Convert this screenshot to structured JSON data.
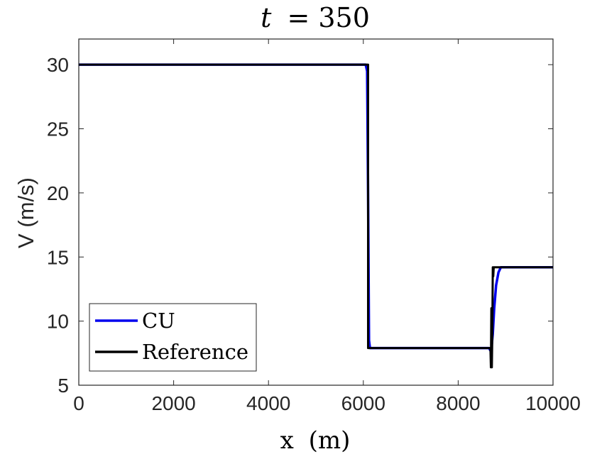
{
  "chart_data": {
    "type": "line",
    "title_var": "t",
    "title_eq": "= 350",
    "xlabel_var": "x",
    "xlabel_unit": "(m)",
    "ylabel": "V (m/s)",
    "xlim": [
      0,
      10000
    ],
    "ylim": [
      5,
      32
    ],
    "xticks": [
      0,
      2000,
      4000,
      6000,
      8000,
      10000
    ],
    "yticks": [
      5,
      10,
      15,
      20,
      25,
      30
    ],
    "grid": false,
    "legend_position": "bottom-left",
    "series": [
      {
        "name": "CU",
        "color": "#0000ee",
        "x": [
          0,
          6050,
          6080,
          6100,
          6120,
          6140,
          8600,
          8650,
          8680,
          8700,
          8730,
          8760,
          8800,
          8850,
          8900,
          10000
        ],
        "y": [
          30,
          30,
          29.5,
          20,
          8.5,
          7.9,
          7.9,
          7.9,
          7.7,
          7.8,
          9.0,
          11.0,
          12.8,
          13.8,
          14.2,
          14.2
        ]
      },
      {
        "name": "Reference",
        "color": "#000000",
        "x": [
          0,
          6100,
          6100,
          8680,
          8690,
          8700,
          8710,
          8720,
          8730,
          8740,
          8750,
          10000
        ],
        "y": [
          30,
          30,
          7.9,
          7.9,
          6.4,
          11.0,
          6.4,
          9.0,
          14.2,
          13.5,
          14.2,
          14.2
        ]
      }
    ]
  }
}
